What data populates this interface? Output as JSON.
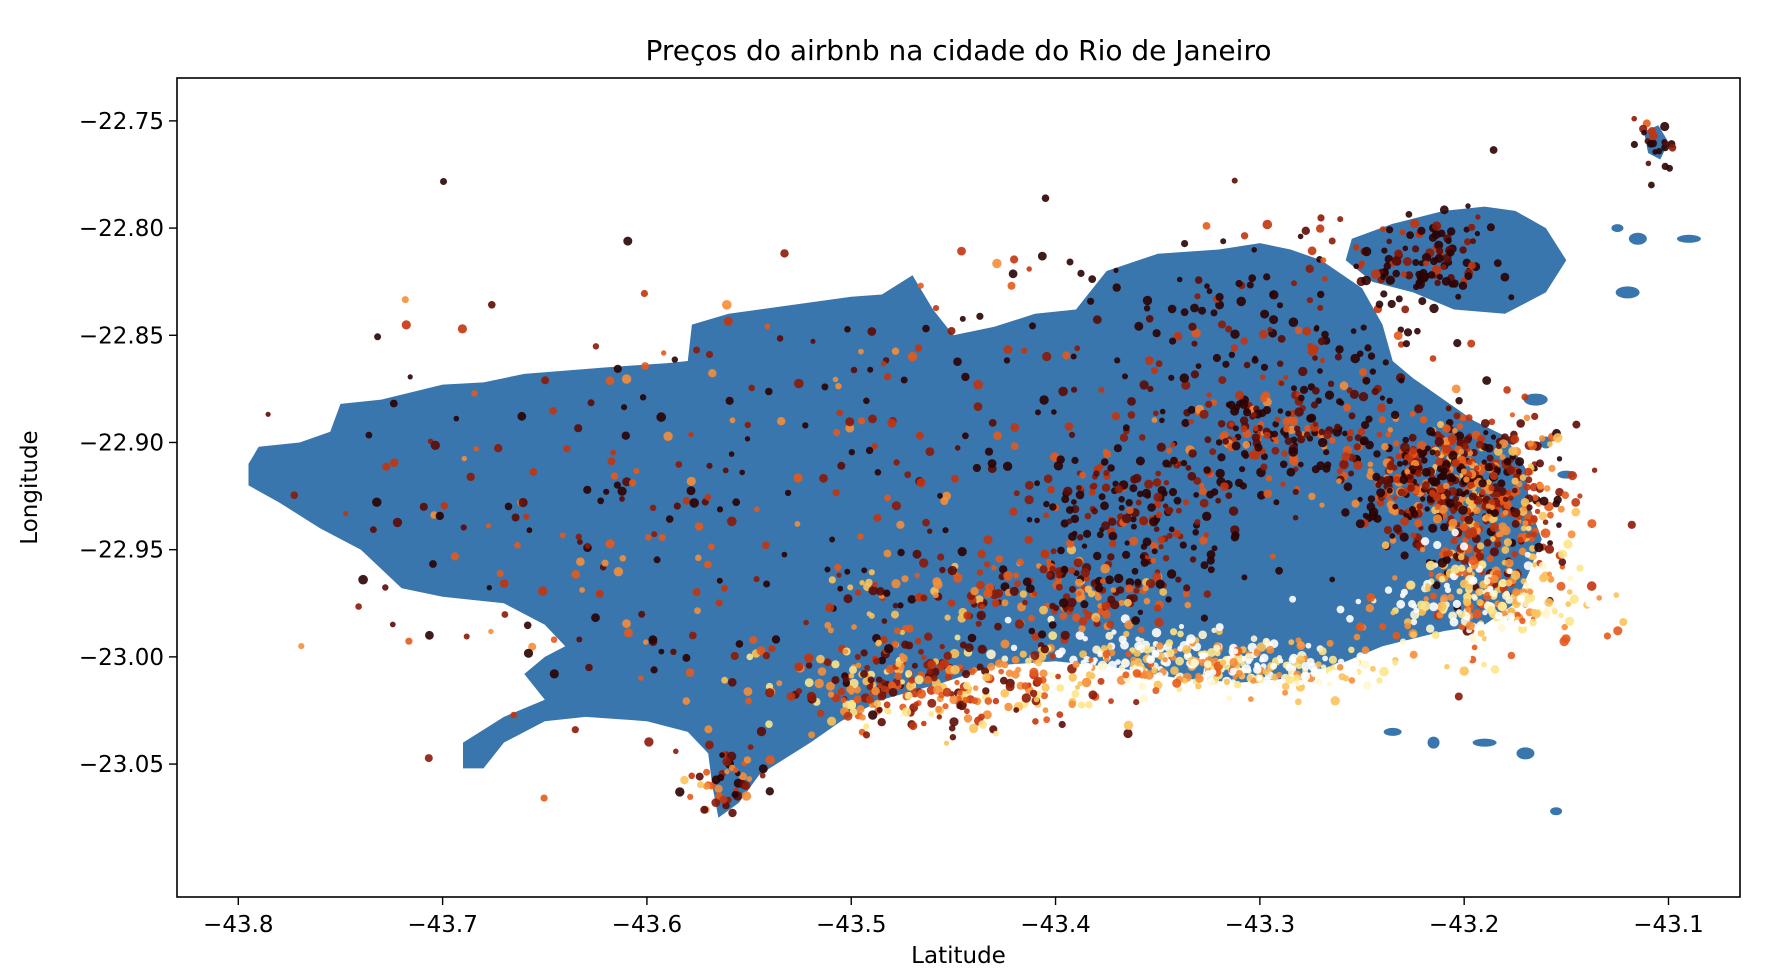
{
  "chart_data": {
    "type": "scatter",
    "title": "Preços do airbnb na cidade do Rio de Janeiro",
    "xlabel": "Latitude",
    "ylabel": "Longitude",
    "xlim": [
      -43.83,
      -43.065
    ],
    "ylim": [
      -23.112,
      -22.73
    ],
    "x_ticks": [
      -43.8,
      -43.7,
      -43.6,
      -43.5,
      -43.4,
      -43.3,
      -43.2,
      -43.1
    ],
    "x_tick_labels": [
      "−43.8",
      "−43.7",
      "−43.6",
      "−43.5",
      "−43.4",
      "−43.3",
      "−43.2",
      "−43.1"
    ],
    "y_ticks": [
      -22.75,
      -22.8,
      -22.85,
      -22.9,
      -22.95,
      -23.0,
      -23.05
    ],
    "y_tick_labels": [
      "−22.75",
      "−22.80",
      "−22.85",
      "−22.90",
      "−22.95",
      "−23.00",
      "−23.05"
    ],
    "grid": false,
    "colors": {
      "map_fill": "#3a76ae",
      "colormap": [
        "#2b0202",
        "#5c0b04",
        "#8c1a06",
        "#c3350f",
        "#e45a1c",
        "#f58e3a",
        "#fbc25a",
        "#fde68a",
        "#fff6d0",
        "#ffffff"
      ]
    },
    "map_outline": {
      "description_free": true,
      "main_polygon": [
        [
          -43.795,
          -22.91
        ],
        [
          -43.79,
          -22.902
        ],
        [
          -43.77,
          -22.9
        ],
        [
          -43.755,
          -22.895
        ],
        [
          -43.75,
          -22.882
        ],
        [
          -43.73,
          -22.88
        ],
        [
          -43.7,
          -22.873
        ],
        [
          -43.68,
          -22.872
        ],
        [
          -43.66,
          -22.868
        ],
        [
          -43.62,
          -22.865
        ],
        [
          -43.59,
          -22.863
        ],
        [
          -43.58,
          -22.862
        ],
        [
          -43.578,
          -22.845
        ],
        [
          -43.56,
          -22.84
        ],
        [
          -43.53,
          -22.836
        ],
        [
          -43.5,
          -22.832
        ],
        [
          -43.485,
          -22.831
        ],
        [
          -43.47,
          -22.822
        ],
        [
          -43.46,
          -22.838
        ],
        [
          -43.45,
          -22.85
        ],
        [
          -43.43,
          -22.846
        ],
        [
          -43.41,
          -22.84
        ],
        [
          -43.39,
          -22.838
        ],
        [
          -43.375,
          -22.82
        ],
        [
          -43.35,
          -22.812
        ],
        [
          -43.32,
          -22.81
        ],
        [
          -43.3,
          -22.807
        ],
        [
          -43.285,
          -22.81
        ],
        [
          -43.27,
          -22.815
        ],
        [
          -43.25,
          -22.828
        ],
        [
          -43.24,
          -22.845
        ],
        [
          -43.235,
          -22.862
        ],
        [
          -43.225,
          -22.87
        ],
        [
          -43.21,
          -22.88
        ],
        [
          -43.195,
          -22.89
        ],
        [
          -43.18,
          -22.897
        ],
        [
          -43.17,
          -22.912
        ],
        [
          -43.168,
          -22.93
        ],
        [
          -43.162,
          -22.945
        ],
        [
          -43.168,
          -22.96
        ],
        [
          -43.175,
          -22.975
        ],
        [
          -43.19,
          -22.985
        ],
        [
          -43.21,
          -22.988
        ],
        [
          -43.24,
          -22.995
        ],
        [
          -43.26,
          -23.003
        ],
        [
          -43.285,
          -23.01
        ],
        [
          -43.31,
          -23.012
        ],
        [
          -43.34,
          -23.01
        ],
        [
          -43.37,
          -23.005
        ],
        [
          -43.4,
          -23.002
        ],
        [
          -43.43,
          -23.004
        ],
        [
          -43.455,
          -23.012
        ],
        [
          -43.485,
          -23.02
        ],
        [
          -43.505,
          -23.03
        ],
        [
          -43.52,
          -23.04
        ],
        [
          -43.545,
          -23.055
        ],
        [
          -43.555,
          -23.068
        ],
        [
          -43.565,
          -23.075
        ],
        [
          -43.568,
          -23.06
        ],
        [
          -43.57,
          -23.045
        ],
        [
          -43.58,
          -23.035
        ],
        [
          -43.6,
          -23.03
        ],
        [
          -43.63,
          -23.028
        ],
        [
          -43.65,
          -23.03
        ],
        [
          -43.67,
          -23.04
        ],
        [
          -43.68,
          -23.052
        ],
        [
          -43.69,
          -23.052
        ],
        [
          -43.69,
          -23.04
        ],
        [
          -43.67,
          -23.028
        ],
        [
          -43.65,
          -23.02
        ],
        [
          -43.66,
          -23.008
        ],
        [
          -43.65,
          -23.0
        ],
        [
          -43.64,
          -22.995
        ],
        [
          -43.65,
          -22.985
        ],
        [
          -43.67,
          -22.975
        ],
        [
          -43.7,
          -22.972
        ],
        [
          -43.72,
          -22.968
        ],
        [
          -43.74,
          -22.95
        ],
        [
          -43.76,
          -22.94
        ],
        [
          -43.78,
          -22.928
        ],
        [
          -43.795,
          -22.92
        ]
      ],
      "governador_island": [
        [
          -43.255,
          -22.805
        ],
        [
          -43.235,
          -22.798
        ],
        [
          -43.21,
          -22.792
        ],
        [
          -43.19,
          -22.79
        ],
        [
          -43.175,
          -22.792
        ],
        [
          -43.16,
          -22.8
        ],
        [
          -43.15,
          -22.815
        ],
        [
          -43.16,
          -22.83
        ],
        [
          -43.18,
          -22.84
        ],
        [
          -43.205,
          -22.838
        ],
        [
          -43.225,
          -22.83
        ],
        [
          -43.245,
          -22.825
        ],
        [
          -43.258,
          -22.815
        ]
      ],
      "paqueta_island": [
        [
          -43.112,
          -22.755
        ],
        [
          -43.105,
          -22.752
        ],
        [
          -43.1,
          -22.76
        ],
        [
          -43.104,
          -22.768
        ],
        [
          -43.11,
          -22.765
        ]
      ]
    },
    "points": []
  }
}
